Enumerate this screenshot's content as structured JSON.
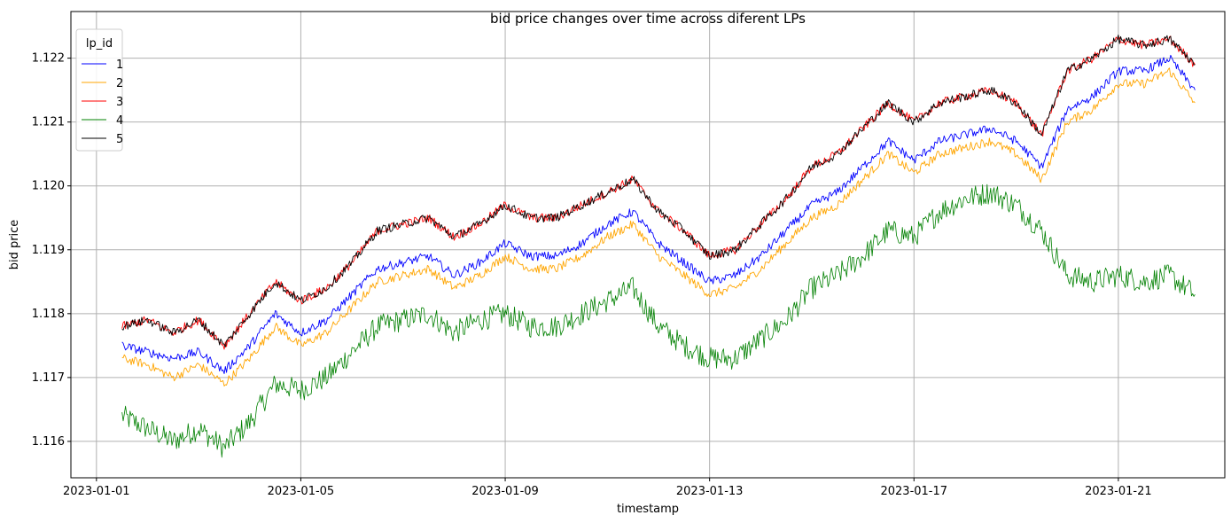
{
  "chart_data": {
    "type": "line",
    "title": "bid price changes over time across diferent LPs",
    "xlabel": "timestamp",
    "ylabel": "bid price",
    "xlim": [
      "2022-12-31T12:00",
      "2023-01-23T02:00"
    ],
    "ylim": [
      1.11543,
      1.12273
    ],
    "x_ticks": [
      "2023-01-01",
      "2023-01-05",
      "2023-01-09",
      "2023-01-13",
      "2023-01-17",
      "2023-01-21"
    ],
    "y_ticks": [
      "1.116",
      "1.117",
      "1.118",
      "1.119",
      "1.120",
      "1.121",
      "1.122"
    ],
    "grid": true,
    "legend": {
      "title": "lp_id",
      "position": "top-left"
    },
    "x": [
      "2023-01-01T12:00",
      "2023-01-02T00:00",
      "2023-01-02T12:00",
      "2023-01-03T00:00",
      "2023-01-03T12:00",
      "2023-01-04T00:00",
      "2023-01-04T12:00",
      "2023-01-05T00:00",
      "2023-01-05T12:00",
      "2023-01-06T00:00",
      "2023-01-06T12:00",
      "2023-01-07T00:00",
      "2023-01-07T12:00",
      "2023-01-08T00:00",
      "2023-01-08T12:00",
      "2023-01-09T00:00",
      "2023-01-09T12:00",
      "2023-01-10T00:00",
      "2023-01-10T12:00",
      "2023-01-11T00:00",
      "2023-01-11T12:00",
      "2023-01-12T00:00",
      "2023-01-12T12:00",
      "2023-01-13T00:00",
      "2023-01-13T12:00",
      "2023-01-14T00:00",
      "2023-01-14T12:00",
      "2023-01-15T00:00",
      "2023-01-15T12:00",
      "2023-01-16T00:00",
      "2023-01-16T12:00",
      "2023-01-17T00:00",
      "2023-01-17T12:00",
      "2023-01-18T00:00",
      "2023-01-18T12:00",
      "2023-01-19T00:00",
      "2023-01-19T12:00",
      "2023-01-20T00:00",
      "2023-01-20T12:00",
      "2023-01-21T00:00",
      "2023-01-21T12:00",
      "2023-01-22T00:00",
      "2023-01-22T12:00"
    ],
    "series": [
      {
        "name": "1",
        "color": "#0000ff",
        "values": [
          1.1175,
          1.1174,
          1.1173,
          1.1174,
          1.1171,
          1.1175,
          1.118,
          1.1177,
          1.1179,
          1.1183,
          1.1187,
          1.1188,
          1.1189,
          1.1186,
          1.1188,
          1.1191,
          1.1189,
          1.1189,
          1.1191,
          1.1194,
          1.1196,
          1.1191,
          1.1188,
          1.1185,
          1.1186,
          1.1189,
          1.1193,
          1.1197,
          1.1199,
          1.1203,
          1.1207,
          1.1204,
          1.1207,
          1.1208,
          1.1209,
          1.1207,
          1.1203,
          1.1212,
          1.1214,
          1.1218,
          1.1218,
          1.122,
          1.1215
        ]
      },
      {
        "name": "2",
        "color": "#ffa500",
        "values": [
          1.1173,
          1.1172,
          1.117,
          1.1172,
          1.1169,
          1.1173,
          1.1178,
          1.1175,
          1.1177,
          1.1181,
          1.1185,
          1.1186,
          1.1187,
          1.1184,
          1.1186,
          1.1189,
          1.1187,
          1.1187,
          1.1189,
          1.1192,
          1.1194,
          1.1189,
          1.1186,
          1.1183,
          1.1184,
          1.1187,
          1.1191,
          1.1195,
          1.1197,
          1.1201,
          1.1205,
          1.1202,
          1.1205,
          1.1206,
          1.1207,
          1.1205,
          1.1201,
          1.121,
          1.1212,
          1.1216,
          1.1216,
          1.1218,
          1.1213
        ]
      },
      {
        "name": "3",
        "color": "#ff0000",
        "values": [
          1.1178,
          1.1179,
          1.1177,
          1.1179,
          1.1175,
          1.118,
          1.1185,
          1.1182,
          1.1184,
          1.1188,
          1.1193,
          1.1194,
          1.1195,
          1.1192,
          1.1194,
          1.1197,
          1.1195,
          1.1195,
          1.1197,
          1.1199,
          1.1201,
          1.1196,
          1.1193,
          1.1189,
          1.119,
          1.1194,
          1.1198,
          1.1203,
          1.1205,
          1.1209,
          1.1213,
          1.121,
          1.1213,
          1.1214,
          1.1215,
          1.1213,
          1.1208,
          1.1218,
          1.122,
          1.1223,
          1.1222,
          1.1223,
          1.1219
        ]
      },
      {
        "name": "4",
        "color": "#008000",
        "values": [
          1.1164,
          1.1162,
          1.116,
          1.1162,
          1.1159,
          1.1163,
          1.1169,
          1.1168,
          1.117,
          1.1174,
          1.1178,
          1.1179,
          1.118,
          1.1177,
          1.1179,
          1.118,
          1.1178,
          1.1178,
          1.118,
          1.1182,
          1.1184,
          1.1178,
          1.1175,
          1.1173,
          1.1173,
          1.1176,
          1.1179,
          1.1184,
          1.1186,
          1.1189,
          1.1193,
          1.1192,
          1.1196,
          1.1198,
          1.1199,
          1.1197,
          1.1193,
          1.1186,
          1.1185,
          1.1186,
          1.1185,
          1.1186,
          1.1183
        ]
      },
      {
        "name": "5",
        "color": "#000000",
        "values": [
          1.1178,
          1.1179,
          1.1177,
          1.1179,
          1.1175,
          1.118,
          1.1185,
          1.1182,
          1.1184,
          1.1188,
          1.1193,
          1.1194,
          1.1195,
          1.1192,
          1.1194,
          1.1197,
          1.1195,
          1.1195,
          1.1197,
          1.1199,
          1.1201,
          1.1196,
          1.1193,
          1.1189,
          1.119,
          1.1194,
          1.1198,
          1.1203,
          1.1205,
          1.1209,
          1.1213,
          1.121,
          1.1213,
          1.1214,
          1.1215,
          1.1213,
          1.1208,
          1.1218,
          1.122,
          1.1223,
          1.1222,
          1.1223,
          1.1219
        ]
      }
    ]
  }
}
